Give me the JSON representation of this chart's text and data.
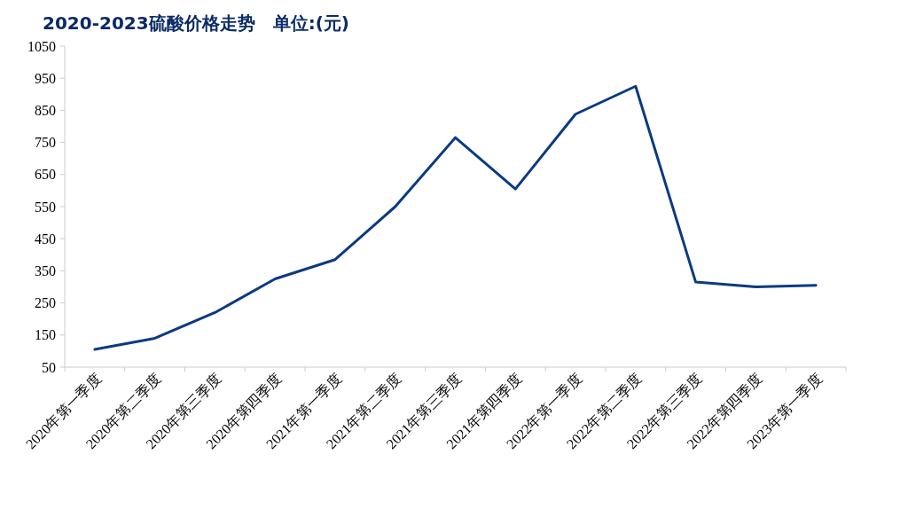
{
  "chart_data": {
    "type": "line",
    "title": "2020-2023硫酸价格走势　单位:(元)",
    "categories": [
      "2020年第一季度",
      "2020年第二季度",
      "2020年第三季度",
      "2020年第四季度",
      "2021年第一季度",
      "2021年第二季度",
      "2021年第三季度",
      "2021年第四季度",
      "2022年第一季度",
      "2022年第二季度",
      "2022年第三季度",
      "2022年第四季度",
      "2023年第一季度"
    ],
    "series": [
      {
        "color": "#0b3a82",
        "values": [
          105,
          140,
          220,
          325,
          385,
          550,
          765,
          605,
          838,
          925,
          315,
          300,
          305
        ]
      }
    ],
    "ylim": [
      50,
      1050
    ],
    "yticks": [
      50,
      150,
      250,
      350,
      450,
      550,
      650,
      750,
      850,
      950,
      1050
    ],
    "grid": false,
    "marker": "none",
    "line_style": "solid"
  }
}
